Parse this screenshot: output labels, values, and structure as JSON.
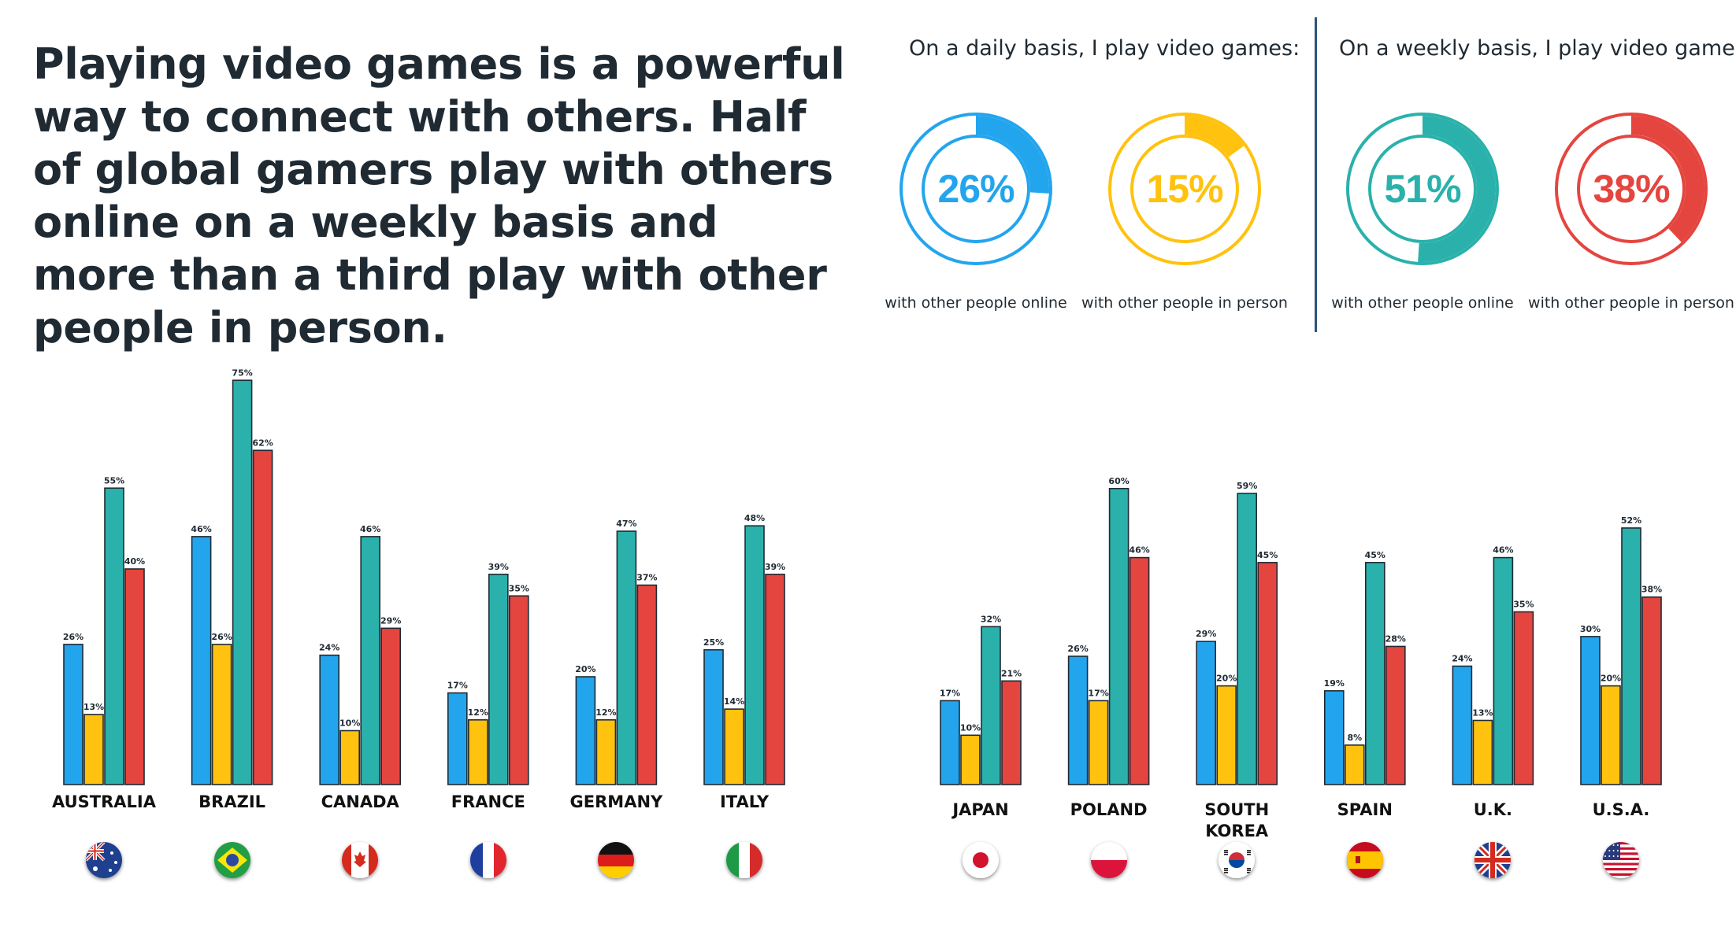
{
  "headline": "Playing video games is a powerful way to connect with others. Half of global gamers play with others online on a weekly basis and more than a third play with other people in person.",
  "daily": {
    "title": "On a daily basis, I play video games:",
    "items": [
      {
        "value": 26,
        "label": "26%",
        "caption": "with other people online",
        "color": "#23a5ee"
      },
      {
        "value": 15,
        "label": "15%",
        "caption": "with other people in person",
        "color": "#ffc20e"
      }
    ]
  },
  "weekly": {
    "title": "On a weekly basis, I play video games:",
    "items": [
      {
        "value": 51,
        "label": "51%",
        "caption": "with other people online",
        "color": "#2ab1ab"
      },
      {
        "value": 38,
        "label": "38%",
        "caption": "with other people in person",
        "color": "#e5453f"
      }
    ]
  },
  "colors": {
    "daily_online": "#23a5ee",
    "daily_in_person": "#ffc20e",
    "weekly_online": "#2ab1ab",
    "weekly_in_person": "#e5453f",
    "bar_outline": "#1f2a33"
  },
  "chart_data": [
    {
      "type": "bar",
      "categories": [
        "AUSTRALIA",
        "BRAZIL",
        "CANADA",
        "FRANCE",
        "GERMANY",
        "ITALY"
      ],
      "flags": [
        "australia-flag",
        "brazil-flag",
        "canada-flag",
        "france-flag",
        "germany-flag",
        "italy-flag"
      ],
      "series": [
        {
          "values": [
            26,
            46,
            24,
            17,
            20,
            25
          ],
          "labels": [
            "26%",
            "46%",
            "24%",
            "17%",
            "20%",
            "25%"
          ]
        },
        {
          "values": [
            13,
            26,
            10,
            12,
            12,
            14
          ],
          "labels": [
            "13%",
            "26%",
            "10%",
            "12%",
            "12%",
            "14%"
          ]
        },
        {
          "values": [
            55,
            75,
            46,
            39,
            47,
            48
          ],
          "labels": [
            "55%",
            "75%",
            "46%",
            "39%",
            "47%",
            "48%"
          ]
        },
        {
          "values": [
            40,
            62,
            29,
            35,
            37,
            39
          ],
          "labels": [
            "40%",
            "62%",
            "29%",
            "35%",
            "37%",
            "39%"
          ]
        }
      ],
      "ylim": [
        0,
        75
      ]
    },
    {
      "type": "bar",
      "categories": [
        "JAPAN",
        "POLAND",
        "SOUTH KOREA",
        "SPAIN",
        "U.K.",
        "U.S.A."
      ],
      "flags": [
        "japan-flag",
        "poland-flag",
        "south-korea-flag",
        "spain-flag",
        "uk-flag",
        "usa-flag"
      ],
      "series": [
        {
          "values": [
            17,
            26,
            29,
            19,
            24,
            30
          ],
          "labels": [
            "17%",
            "26%",
            "29%",
            "19%",
            "24%",
            "30%"
          ]
        },
        {
          "values": [
            10,
            17,
            20,
            8,
            13,
            20
          ],
          "labels": [
            "10%",
            "17%",
            "20%",
            "8%",
            "13%",
            "20%"
          ]
        },
        {
          "values": [
            32,
            60,
            59,
            45,
            46,
            52
          ],
          "labels": [
            "32%",
            "60%",
            "59%",
            "45%",
            "46%",
            "52%"
          ]
        },
        {
          "values": [
            21,
            46,
            45,
            28,
            35,
            38
          ],
          "labels": [
            "21%",
            "46%",
            "45%",
            "28%",
            "35%",
            "38%"
          ]
        }
      ],
      "ylim": [
        0,
        60
      ]
    }
  ]
}
